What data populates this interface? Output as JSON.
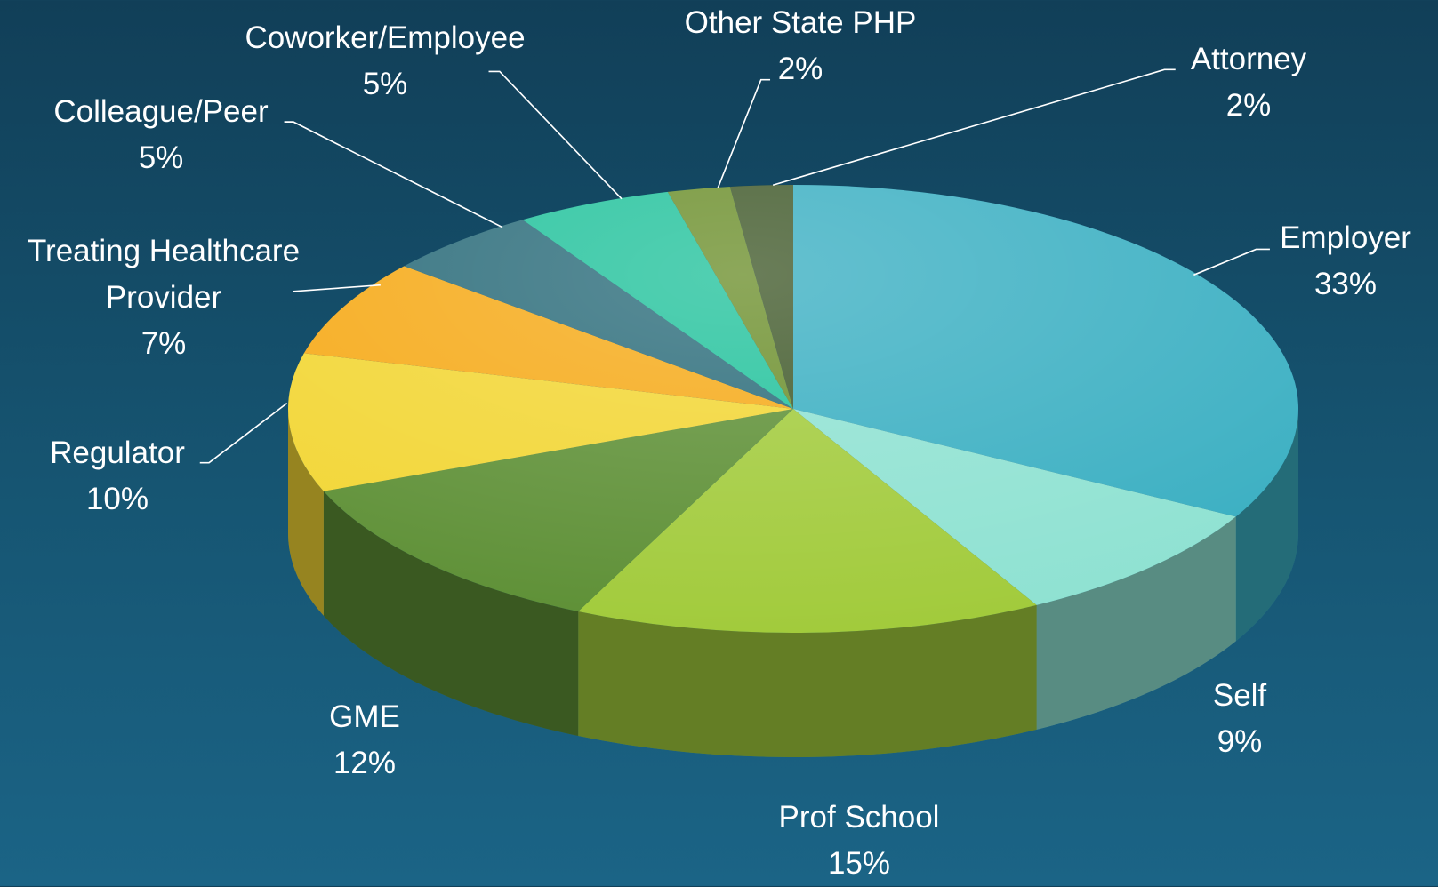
{
  "chart_data": {
    "type": "pie",
    "categories": [
      "Employer",
      "Self",
      "Prof School",
      "GME",
      "Regulator",
      "Treating Healthcare Provider",
      "Colleague/Peer",
      "Coworker/Employee",
      "Other State PHP",
      "Attorney"
    ],
    "values": [
      33,
      9,
      15,
      12,
      10,
      7,
      5,
      5,
      2,
      2
    ],
    "value_labels": [
      "33%",
      "9%",
      "15%",
      "12%",
      "10%",
      "7%",
      "5%",
      "5%",
      "2%",
      "2%"
    ],
    "colors": [
      "#3aafc2",
      "#8fe2d2",
      "#a2cb3c",
      "#5e9036",
      "#f2d634",
      "#f6aa18",
      "#2b6c7a",
      "#22c29c",
      "#6c8f2c",
      "#40592a"
    ]
  }
}
